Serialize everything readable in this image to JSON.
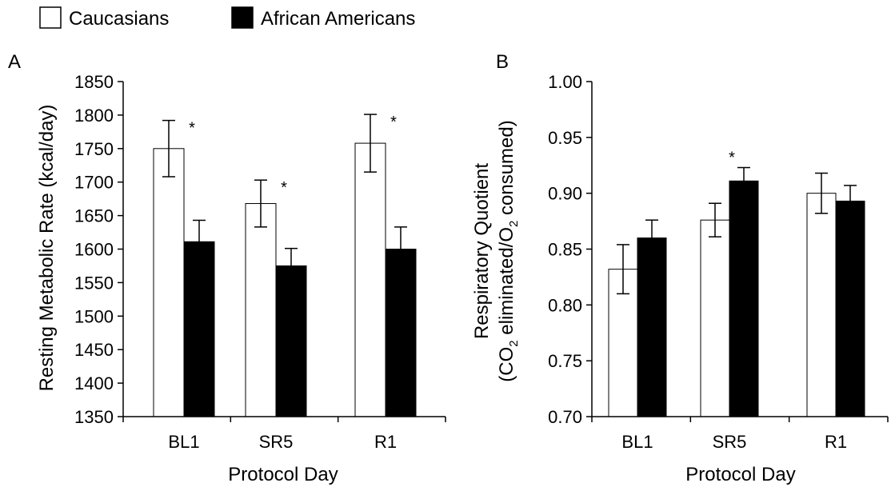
{
  "legend": {
    "items": [
      {
        "label": "Caucasians",
        "fill": "#ffffff"
      },
      {
        "label": "African Americans",
        "fill": "#000000"
      }
    ]
  },
  "chart_data": [
    {
      "type": "bar",
      "panel": "A",
      "xlabel": "Protocol Day",
      "ylabel": "Resting Metabolic Rate (kcal/day)",
      "ylim": [
        1350,
        1850
      ],
      "yticks": [
        "1350",
        "1400",
        "1450",
        "1500",
        "1550",
        "1600",
        "1650",
        "1700",
        "1750",
        "1800",
        "1850"
      ],
      "categories": [
        "BL1",
        "SR5",
        "R1"
      ],
      "series": [
        {
          "name": "Caucasians",
          "values": [
            1750,
            1668,
            1758
          ],
          "errors": [
            42,
            35,
            43
          ],
          "color": "#ffffff"
        },
        {
          "name": "African Americans",
          "values": [
            1611,
            1575,
            1600
          ],
          "errors": [
            32,
            26,
            33
          ],
          "color": "#000000"
        }
      ],
      "significance": [
        {
          "category": "BL1",
          "label": "*"
        },
        {
          "category": "SR5",
          "label": "*"
        },
        {
          "category": "R1",
          "label": "*"
        }
      ],
      "grid": false
    },
    {
      "type": "bar",
      "panel": "B",
      "xlabel": "Protocol Day",
      "ylabel": "Respiratory Quotient (CO2 eliminated/O2 consumed)",
      "ylabel_line1": "Respiratory Quotient",
      "ylabel_line2": {
        "a": "(CO",
        "sub1": "2",
        "b": " eliminated/O",
        "sub2": "2",
        "c": " consumed)"
      },
      "ylim": [
        0.7,
        1.0
      ],
      "yticks": [
        "0.70",
        "0.75",
        "0.80",
        "0.85",
        "0.90",
        "0.95",
        "1.00"
      ],
      "categories": [
        "BL1",
        "SR5",
        "R1"
      ],
      "series": [
        {
          "name": "Caucasians",
          "values": [
            0.832,
            0.876,
            0.9
          ],
          "errors": [
            0.022,
            0.015,
            0.018
          ],
          "color": "#ffffff"
        },
        {
          "name": "African Americans",
          "values": [
            0.86,
            0.911,
            0.893
          ],
          "errors": [
            0.016,
            0.012,
            0.014
          ],
          "color": "#000000"
        }
      ],
      "significance": [
        {
          "category": "SR5",
          "label": "*"
        }
      ],
      "grid": false
    }
  ]
}
